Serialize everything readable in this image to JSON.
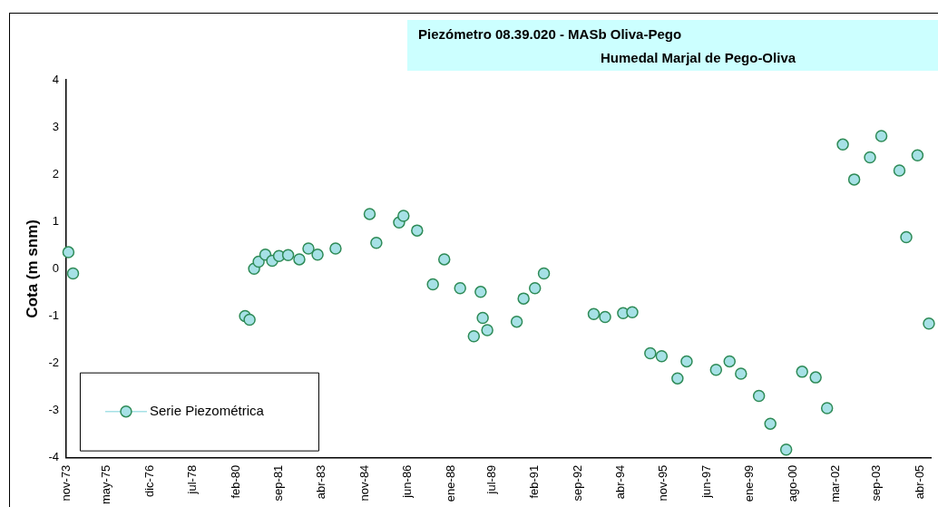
{
  "chart_data": {
    "type": "scatter",
    "title": "Piezómetro 08.39.020  - MASb Oliva-Pego",
    "subtitle": "Humedal Marjal de Pego-Oliva",
    "ylabel": "Cota (m snm)",
    "xlim": [
      "1973-11-01",
      "2005-09-01"
    ],
    "xticks": [
      {
        "value": "1973-11-01",
        "label": "nov-73"
      },
      {
        "value": "1975-05-01",
        "label": "may-75"
      },
      {
        "value": "1976-12-01",
        "label": "dic-76"
      },
      {
        "value": "1978-07-01",
        "label": "jul-78"
      },
      {
        "value": "1980-02-01",
        "label": "feb-80"
      },
      {
        "value": "1981-09-01",
        "label": "sep-81"
      },
      {
        "value": "1983-04-01",
        "label": "abr-83"
      },
      {
        "value": "1984-11-01",
        "label": "nov-84"
      },
      {
        "value": "1986-06-01",
        "label": "jun-86"
      },
      {
        "value": "1988-01-01",
        "label": "ene-88"
      },
      {
        "value": "1989-07-01",
        "label": "jul-89"
      },
      {
        "value": "1991-02-01",
        "label": "feb-91"
      },
      {
        "value": "1992-09-01",
        "label": "sep-92"
      },
      {
        "value": "1994-04-01",
        "label": "abr-94"
      },
      {
        "value": "1995-11-01",
        "label": "nov-95"
      },
      {
        "value": "1997-06-01",
        "label": "jun-97"
      },
      {
        "value": "1999-01-01",
        "label": "ene-99"
      },
      {
        "value": "2000-08-01",
        "label": "ago-00"
      },
      {
        "value": "2002-03-01",
        "label": "mar-02"
      },
      {
        "value": "2003-09-01",
        "label": "sep-03"
      },
      {
        "value": "2005-04-01",
        "label": "abr-05"
      }
    ],
    "ylim": [
      -4,
      4
    ],
    "yticks": [
      -4,
      -3,
      -2,
      -1,
      0,
      1,
      2,
      3,
      4
    ],
    "grid": false,
    "legend": "bottom left",
    "marker": "circle",
    "series": [
      {
        "name": "Serie Piezométrica",
        "color": "#a6e1e6",
        "x": [
          "1973-12",
          "1974-02",
          "1980-06",
          "1980-08",
          "1980-10",
          "1980-12",
          "1981-03",
          "1981-06",
          "1981-09",
          "1982-01",
          "1982-06",
          "1982-10",
          "1983-02",
          "1983-10",
          "1985-01",
          "1985-04",
          "1986-02",
          "1986-04",
          "1986-10",
          "1987-05",
          "1987-10",
          "1988-05",
          "1988-11",
          "1989-02",
          "1989-03",
          "1989-05",
          "1990-06",
          "1990-09",
          "1991-02",
          "1991-06",
          "1993-04",
          "1993-09",
          "1994-05",
          "1994-09",
          "1995-05",
          "1995-10",
          "1996-05",
          "1996-09",
          "1997-10",
          "1998-04",
          "1998-09",
          "1999-05",
          "1999-10",
          "2000-05",
          "2000-12",
          "2001-06",
          "2001-11",
          "2002-06",
          "2002-11",
          "2003-06",
          "2003-11",
          "2004-07",
          "2004-10",
          "2005-03",
          "2005-08"
        ],
        "values": [
          0.35,
          -0.1,
          -1.0,
          -1.08,
          0.0,
          0.15,
          0.3,
          0.17,
          0.27,
          0.29,
          0.2,
          0.43,
          0.3,
          0.43,
          1.16,
          0.55,
          0.98,
          1.12,
          0.81,
          -0.33,
          0.2,
          -0.41,
          -1.43,
          -0.49,
          -1.04,
          -1.3,
          -1.12,
          -0.63,
          -0.41,
          -0.1,
          -0.96,
          -1.02,
          -0.94,
          -0.92,
          -1.79,
          -1.85,
          -2.32,
          -1.96,
          -2.14,
          -1.96,
          -2.22,
          -2.69,
          -3.28,
          -3.83,
          -2.18,
          -2.3,
          -2.95,
          2.63,
          1.89,
          2.36,
          2.81,
          2.08,
          0.67,
          2.4,
          -1.16
        ]
      }
    ]
  }
}
